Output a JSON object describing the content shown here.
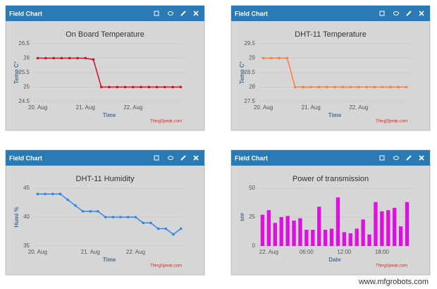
{
  "chart_data": [
    {
      "type": "line",
      "header": "Field Chart",
      "title": "On Board Temperature",
      "ylabel": "Temp C°",
      "xlabel": "Time",
      "credit": "ThingSpeak.com",
      "color": "#cc1122",
      "categories": [
        "20. Aug",
        null,
        null,
        null,
        null,
        null,
        "21. Aug",
        null,
        null,
        null,
        null,
        null,
        "22. Aug",
        null,
        null,
        null,
        null,
        null,
        null
      ],
      "values": [
        26,
        26,
        26,
        26,
        26,
        26,
        26,
        25.95,
        25,
        25,
        25,
        25,
        25,
        25,
        25,
        25,
        25,
        25,
        25
      ],
      "ylim": [
        24.5,
        26.5
      ],
      "yticks": [
        24.5,
        25,
        25.5,
        26,
        26.5
      ],
      "grid": true
    },
    {
      "type": "line",
      "header": "Field Chart",
      "title": "DHT-11 Temperature",
      "ylabel": "Temp C°",
      "xlabel": "Time",
      "credit": "ThingSpeak.com",
      "color": "#f5823c",
      "categories": [
        "20. Aug",
        null,
        null,
        null,
        null,
        null,
        "21. Aug",
        null,
        null,
        null,
        null,
        null,
        "22. Aug",
        null,
        null,
        null,
        null,
        null,
        null
      ],
      "values": [
        29,
        29,
        29,
        29,
        28,
        28,
        28,
        28,
        28,
        28,
        28,
        28,
        28,
        28,
        28,
        28,
        28,
        28,
        28
      ],
      "ylim": [
        27.5,
        29.5
      ],
      "yticks": [
        27.5,
        28,
        28.5,
        29,
        29.5
      ],
      "grid": true
    },
    {
      "type": "line",
      "header": "Field Chart",
      "title": "DHT-11 Humidity",
      "ylabel": "Humi %",
      "xlabel": "Time",
      "credit": "ThingSpeak.com",
      "color": "#2f86f0",
      "categories": [
        "20. Aug",
        null,
        null,
        null,
        null,
        null,
        null,
        "21. Aug",
        null,
        null,
        null,
        null,
        null,
        "22. Aug",
        null,
        null,
        null,
        null,
        null,
        null
      ],
      "values": [
        44,
        44,
        44,
        44,
        43,
        42,
        41,
        41,
        41,
        40,
        40,
        40,
        40,
        40,
        39,
        39,
        38,
        38,
        37,
        38
      ],
      "ylim": [
        35,
        45
      ],
      "yticks": [
        35,
        40,
        45
      ],
      "grid": true
    },
    {
      "type": "bar",
      "header": "Field Chart",
      "title": "Power of transmission",
      "ylabel": "snr",
      "xlabel": "Date",
      "credit": "ThingSpeak.com",
      "color": "#dd11dd",
      "categories": [
        null,
        "22. Aug",
        null,
        null,
        null,
        null,
        null,
        "06:00",
        null,
        null,
        null,
        null,
        null,
        "12:00",
        null,
        null,
        null,
        null,
        null,
        "18:00",
        null,
        null,
        null,
        null
      ],
      "values": [
        27,
        31,
        20,
        25,
        26,
        22,
        24,
        14,
        14,
        34,
        14,
        15,
        42,
        12,
        11,
        15,
        23,
        10,
        38,
        30,
        31,
        33,
        17,
        38
      ],
      "ylim": [
        0,
        50
      ],
      "yticks": [
        0,
        25,
        50
      ],
      "grid": true
    }
  ],
  "watermark": "www.mfgrobots.com"
}
